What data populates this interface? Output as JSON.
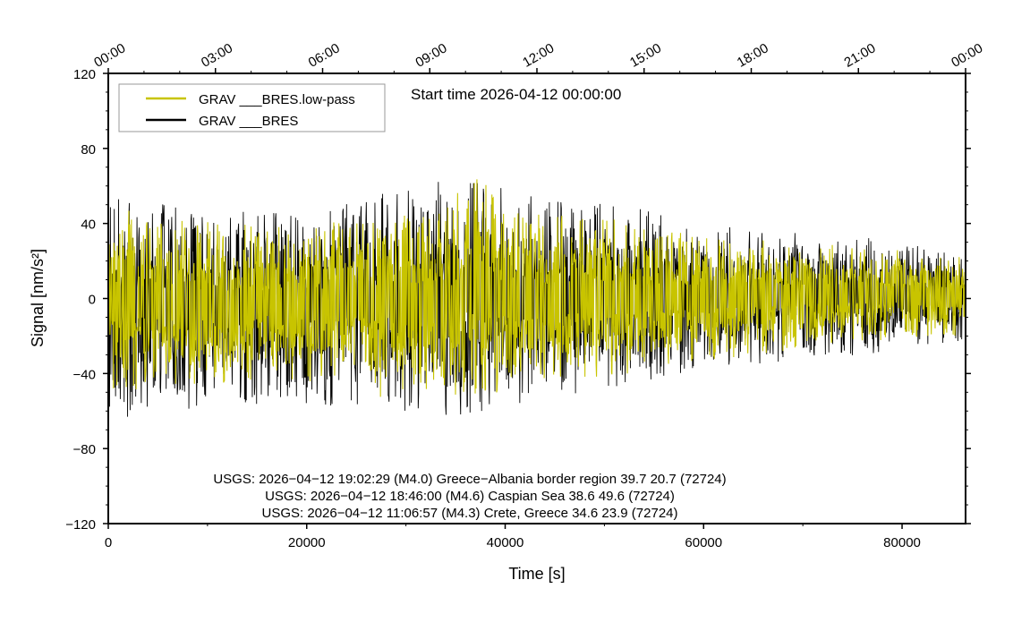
{
  "chart_data": {
    "type": "line",
    "title": "Start time 2026-04-12 00:00:00",
    "xlabel": "Time [s]",
    "ylabel": "Signal [nm/s²]",
    "xlim": [
      0,
      86400
    ],
    "ylim": [
      -120,
      120
    ],
    "x_ticks": [
      0,
      20000,
      40000,
      60000,
      80000
    ],
    "x_tick_labels": [
      "0",
      "20000",
      "40000",
      "60000",
      "80000"
    ],
    "y_ticks": [
      -120,
      -80,
      -40,
      0,
      40,
      80,
      120
    ],
    "y_tick_labels": [
      "−120",
      "−80",
      "−40",
      "0",
      "40",
      "80",
      "120"
    ],
    "top_axis": {
      "tick_seconds": [
        0,
        10800,
        21600,
        32400,
        43200,
        54000,
        64800,
        75600,
        86400
      ],
      "tick_labels": [
        "00:00",
        "03:00",
        "06:00",
        "09:00",
        "12:00",
        "15:00",
        "18:00",
        "21:00",
        "00:00"
      ]
    },
    "grid": false,
    "legend_position": "top-left",
    "series": [
      {
        "name": "GRAV ___BRES.low-pass",
        "color": "#c8c400",
        "x": [
          0,
          5000,
          10000,
          15000,
          20000,
          25000,
          30000,
          35000,
          37500,
          40000,
          45000,
          50000,
          55000,
          60000,
          65000,
          70000,
          75000,
          80000,
          86400
        ],
        "upper": [
          53,
          50,
          45,
          44,
          45,
          46,
          50,
          55,
          74,
          52,
          50,
          48,
          42,
          38,
          36,
          34,
          30,
          28,
          24
        ],
        "lower": [
          -56,
          -54,
          -52,
          -48,
          -50,
          -50,
          -55,
          -58,
          -62,
          -53,
          -50,
          -47,
          -42,
          -38,
          -34,
          -30,
          -26,
          -24,
          -22
        ]
      },
      {
        "name": "GRAV ___BRES",
        "color": "#000000",
        "x": [
          0,
          5000,
          10000,
          15000,
          20000,
          25000,
          30000,
          35000,
          37500,
          40000,
          45000,
          50000,
          55000,
          60000,
          65000,
          70000,
          75000,
          80000,
          86400
        ],
        "upper": [
          60,
          58,
          55,
          52,
          55,
          58,
          68,
          70,
          71,
          65,
          60,
          56,
          52,
          45,
          40,
          38,
          35,
          32,
          28
        ],
        "lower": [
          -72,
          -70,
          -65,
          -62,
          -63,
          -65,
          -68,
          -70,
          -75,
          -65,
          -58,
          -55,
          -48,
          -42,
          -40,
          -35,
          -34,
          -30,
          -25
        ]
      }
    ],
    "annotations": [
      "USGS: 2026−04−12 19:02:29 (M4.0) Greece−Albania border region 39.7 20.7 (72724)",
      "USGS: 2026−04−12 18:46:00 (M4.6) Caspian Sea 38.6 49.6 (72724)",
      "USGS: 2026−04−12 11:06:57 (M4.3) Crete, Greece 34.6 23.9 (72724)"
    ]
  }
}
